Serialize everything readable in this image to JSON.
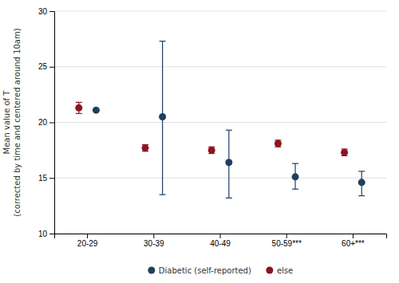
{
  "chart_data": {
    "type": "errorbar",
    "categories": [
      "20-29",
      "30-39",
      "40-49",
      "50-59***",
      "60+***"
    ],
    "series": [
      {
        "name": "else",
        "color": "#8b1520",
        "values": [
          21.3,
          17.7,
          17.5,
          18.1,
          17.3
        ],
        "lower": [
          20.8,
          17.4,
          17.2,
          17.8,
          17.0
        ],
        "upper": [
          21.8,
          18.0,
          17.8,
          18.4,
          17.6
        ]
      },
      {
        "name": "Diabetic (self-reported)",
        "color": "#1f3f5f",
        "values": [
          21.1,
          20.5,
          16.4,
          15.1,
          14.6
        ],
        "lower": [
          21.1,
          13.5,
          13.2,
          14.0,
          13.4
        ],
        "upper": [
          21.1,
          27.3,
          19.3,
          16.3,
          15.6
        ]
      }
    ],
    "y_label": "Mean value of T\n(corrected by time and centered around 10am)",
    "ylim": [
      10,
      30
    ],
    "yticks": [
      10,
      15,
      20,
      25,
      30
    ],
    "grid": true,
    "legend": "bottom"
  }
}
